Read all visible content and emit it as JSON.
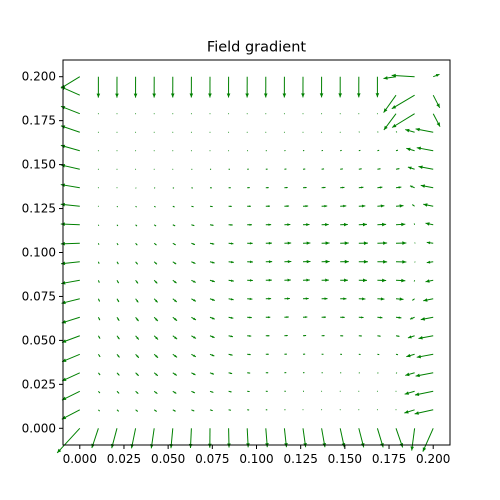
{
  "chart_data": {
    "type": "quiver",
    "title": "Field gradient",
    "xlabel": "",
    "ylabel": "",
    "xlim": [
      -0.0095,
      0.2095
    ],
    "ylim": [
      -0.0095,
      0.2095
    ],
    "x_ticks": [
      "0.000",
      "0.025",
      "0.050",
      "0.075",
      "0.100",
      "0.125",
      "0.150",
      "0.175",
      "0.200"
    ],
    "y_ticks": [
      "0.000",
      "0.025",
      "0.050",
      "0.075",
      "0.100",
      "0.125",
      "0.150",
      "0.175",
      "0.200"
    ],
    "grid": false,
    "grid_spacing": 0.01053,
    "grid_points_per_axis": 20,
    "arrow_color": "#008000",
    "description_of_field": "Gradient of a scalar field on a 20x20 grid over [0, 0.2]: arrows are long and point inward along the borders (downward at the top edge, outward-diagonal at the corners, leftward along the right edge), with a strong right-hand source near (0.19, 0.10) and a lobe pattern in the lower-left quadrant; magnitudes are near zero at the centre."
  }
}
